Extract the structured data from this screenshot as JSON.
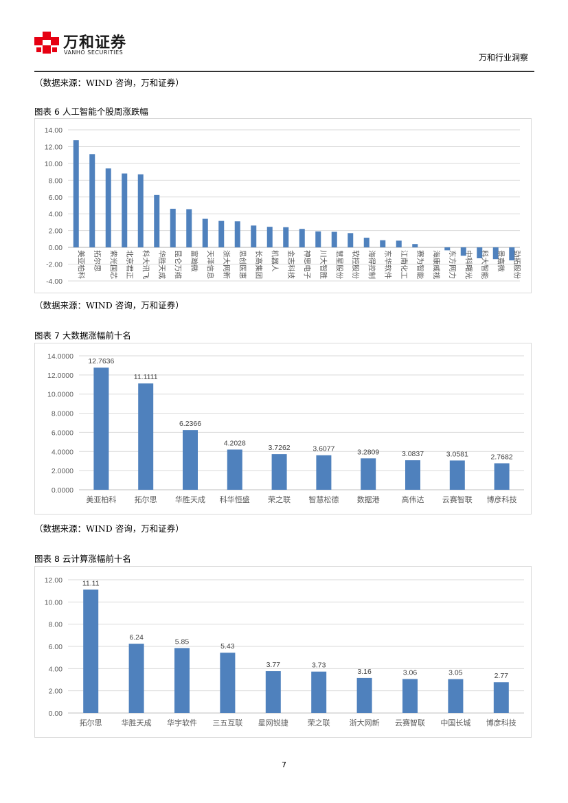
{
  "header": {
    "company_cn": "万和证券",
    "company_en": "VANHO SECURITIES",
    "report_name": "万和行业洞察"
  },
  "sources": {
    "s1": "（数据来源：WIND 咨询，万和证券）",
    "s2": "（数据来源：WIND 咨询，万和证券）",
    "s3": "（数据来源：WIND 咨询，万和证券）"
  },
  "figures": {
    "f6": "图表 6 人工智能个股周涨跌幅",
    "f7": "图表 7 大数据涨幅前十名",
    "f8": "图表 8 云计算涨幅前十名"
  },
  "colors": {
    "bar": "#4f81bd",
    "grid": "#d9d9d9",
    "axis_text": "#595959",
    "logo_red": "#e60012"
  },
  "page_number": "7",
  "chart_data": [
    {
      "type": "bar",
      "ylim": [
        -4,
        14
      ],
      "yticks": [
        "14.00",
        "12.00",
        "10.00",
        "8.00",
        "6.00",
        "4.00",
        "2.00",
        "0.00",
        "-2.00",
        "-4.00"
      ],
      "categories": [
        "美亚柏科",
        "拓尔思",
        "紫光国芯",
        "北京君正",
        "科大讯飞",
        "华胜天成",
        "昆仑万维",
        "富瀚微",
        "天泽信息",
        "浙大网新",
        "思创医惠",
        "长高集团",
        "机器人",
        "金志科技",
        "神思电子",
        "川大智胜",
        "慧星股份",
        "软控股份",
        "海得控制",
        "东华软件",
        "江南化工",
        "赛为智能",
        "海康威视",
        "东方网力",
        "中科曙光",
        "科大智能",
        "景嘉微",
        "劲拓股份"
      ],
      "values": [
        12.76,
        11.11,
        9.4,
        8.8,
        8.7,
        6.24,
        4.6,
        4.55,
        3.4,
        3.15,
        3.1,
        2.6,
        2.45,
        2.4,
        2.2,
        1.9,
        1.85,
        1.7,
        1.15,
        0.85,
        0.8,
        0.4,
        0.0,
        -0.35,
        -1.0,
        -1.3,
        -1.4,
        -1.55
      ],
      "grid": true
    },
    {
      "type": "bar",
      "ylim": [
        0,
        14
      ],
      "yticks": [
        "14.0000",
        "12.0000",
        "10.0000",
        "8.0000",
        "6.0000",
        "4.0000",
        "2.0000",
        "0.0000"
      ],
      "categories": [
        "美亚柏科",
        "拓尔思",
        "华胜天成",
        "科华恒盛",
        "荣之联",
        "智慧松德",
        "数据港",
        "高伟达",
        "云赛智联",
        "博彦科技"
      ],
      "values": [
        12.7636,
        11.1111,
        6.2366,
        4.2028,
        3.7262,
        3.6077,
        3.2809,
        3.0837,
        3.0581,
        2.7682
      ],
      "labels": [
        "12.7636",
        "11.1111",
        "6.2366",
        "4.2028",
        "3.7262",
        "3.6077",
        "3.2809",
        "3.0837",
        "3.0581",
        "2.7682"
      ],
      "grid": true
    },
    {
      "type": "bar",
      "ylim": [
        0,
        12
      ],
      "yticks": [
        "12.00",
        "10.00",
        "8.00",
        "6.00",
        "4.00",
        "2.00",
        "0.00"
      ],
      "categories": [
        "拓尔思",
        "华胜天成",
        "华宇软件",
        "三五互联",
        "星网锐捷",
        "荣之联",
        "浙大网新",
        "云赛智联",
        "中国长城",
        "博彦科技"
      ],
      "values": [
        11.11,
        6.24,
        5.85,
        5.43,
        3.77,
        3.73,
        3.16,
        3.06,
        3.05,
        2.77
      ],
      "labels": [
        "11.11",
        "6.24",
        "5.85",
        "5.43",
        "3.77",
        "3.73",
        "3.16",
        "3.06",
        "3.05",
        "2.77"
      ],
      "grid": true
    }
  ]
}
